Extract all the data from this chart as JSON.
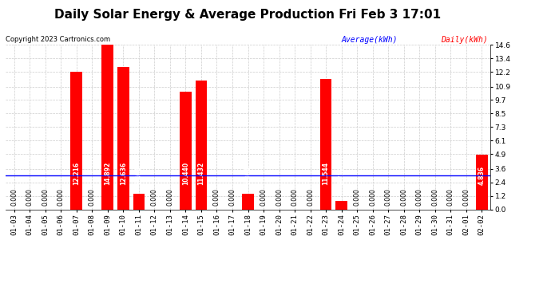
{
  "title": "Daily Solar Energy & Average Production Fri Feb 3 17:01",
  "copyright": "Copyright 2023 Cartronics.com",
  "categories": [
    "01-03",
    "01-04",
    "01-05",
    "01-06",
    "01-07",
    "01-08",
    "01-09",
    "01-10",
    "01-11",
    "01-12",
    "01-13",
    "01-14",
    "01-15",
    "01-16",
    "01-17",
    "01-18",
    "01-19",
    "01-20",
    "01-21",
    "01-22",
    "01-23",
    "01-24",
    "01-25",
    "01-26",
    "01-27",
    "01-28",
    "01-29",
    "01-30",
    "01-31",
    "02-01",
    "02-02"
  ],
  "values": [
    0.0,
    0.0,
    0.0,
    0.0,
    12.216,
    0.0,
    14.892,
    12.636,
    1.404,
    0.0,
    0.0,
    10.44,
    11.432,
    0.0,
    0.0,
    1.364,
    0.0,
    0.0,
    0.0,
    0.0,
    11.544,
    0.732,
    0.0,
    0.0,
    0.0,
    0.0,
    0.0,
    0.0,
    0.0,
    0.0,
    4.836
  ],
  "average": 3.007,
  "bar_color": "#ff0000",
  "average_color": "#0000ff",
  "background_color": "#ffffff",
  "grid_color": "#cccccc",
  "yticks": [
    0.0,
    1.2,
    2.4,
    3.6,
    4.9,
    6.1,
    7.3,
    8.5,
    9.7,
    10.9,
    12.2,
    13.4,
    14.6
  ],
  "title_fontsize": 11,
  "tick_fontsize": 6.5,
  "label_fontsize": 5.5,
  "legend_avg_label": "Average(kWh)",
  "legend_daily_label": "Daily(kWh)",
  "avg_label_color": "#0000ff",
  "daily_label_color": "#ff0000",
  "ylim_max": 14.6
}
